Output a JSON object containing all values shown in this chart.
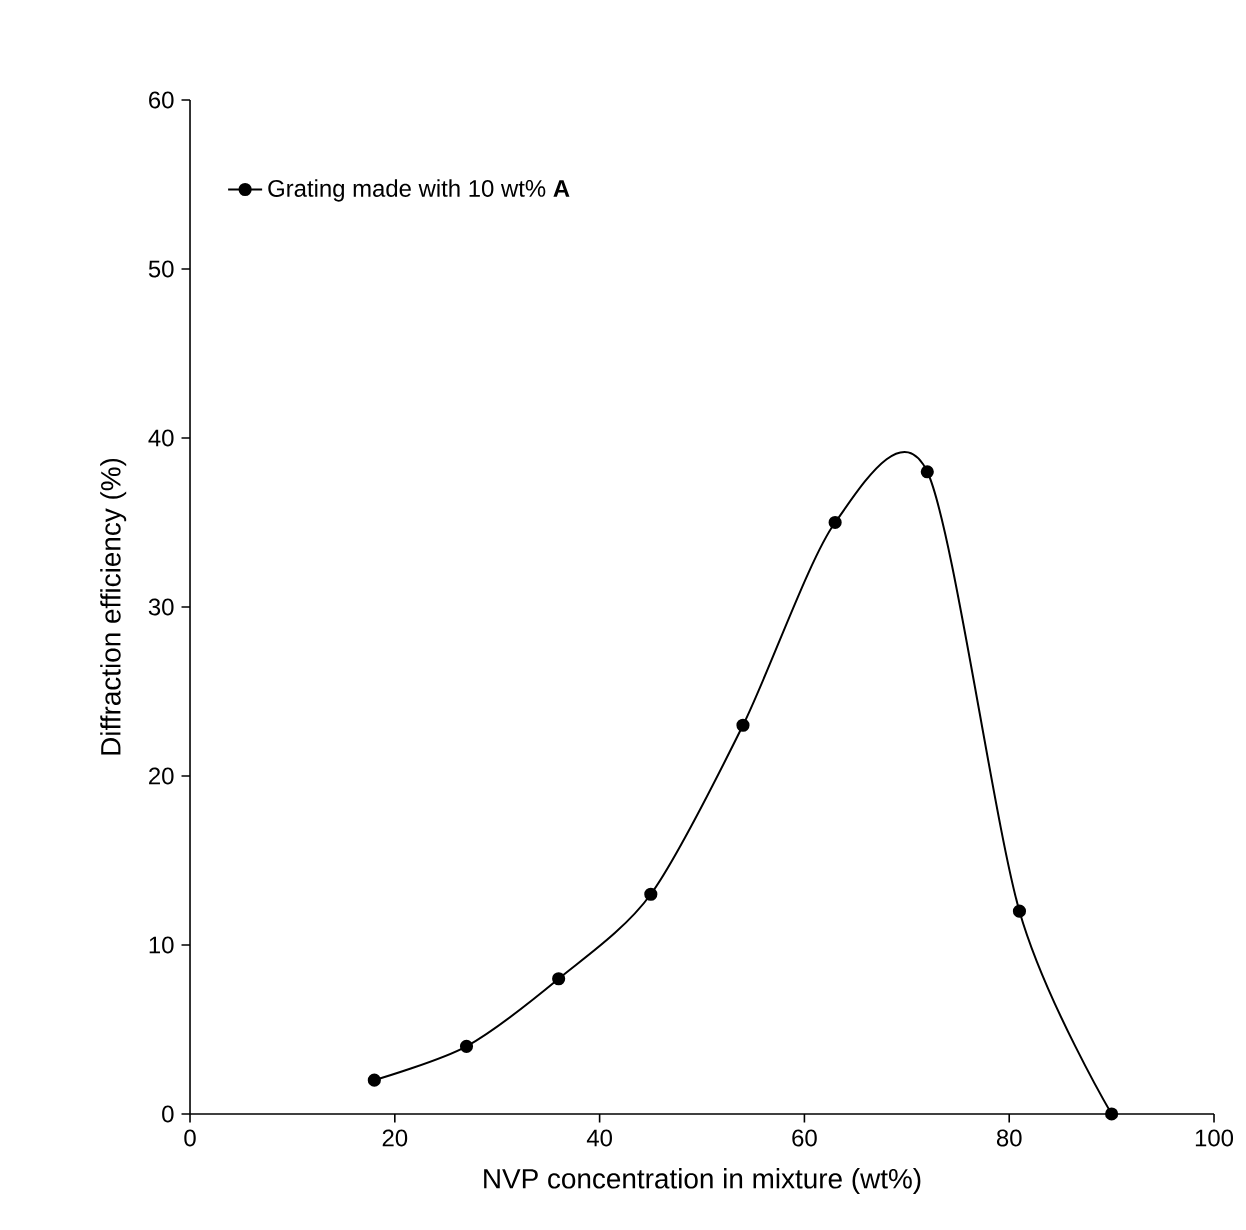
{
  "chart_data": {
    "type": "line",
    "xlabel": "NVP concentration in mixture (wt%)",
    "ylabel": "Diffraction efficiency (%)",
    "x": [
      18,
      27,
      36,
      45,
      54,
      63,
      72,
      81,
      90
    ],
    "series": [
      {
        "name": "Grating made with 10 wt% **A**",
        "color": "#000000",
        "values": [
          2,
          4,
          8,
          13,
          23,
          35,
          38,
          12,
          0
        ]
      }
    ],
    "xlim": [
      0,
      100
    ],
    "xticks": [
      0,
      20,
      40,
      60,
      80,
      100
    ],
    "ylim": [
      0,
      60
    ],
    "yticks": [
      0,
      10,
      20,
      30,
      40,
      50,
      60
    ],
    "legend": "top left",
    "marker": "circle",
    "line_style": "solid",
    "grid": false
  }
}
